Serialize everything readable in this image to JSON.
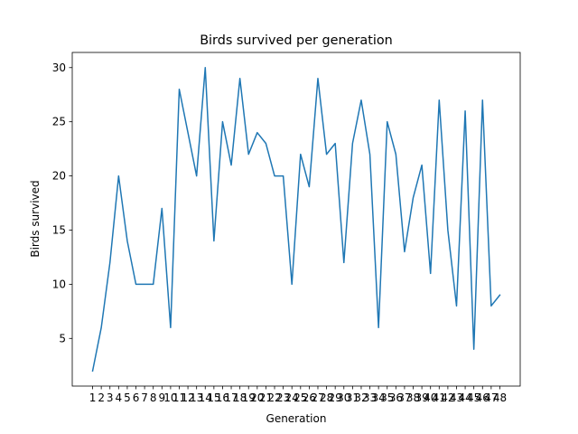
{
  "chart_data": {
    "type": "line",
    "title": "Birds survived per generation",
    "xlabel": "Generation",
    "ylabel": "Birds survived",
    "x": [
      1,
      2,
      3,
      4,
      5,
      6,
      7,
      8,
      9,
      10,
      11,
      12,
      13,
      14,
      15,
      16,
      17,
      18,
      19,
      20,
      21,
      22,
      23,
      24,
      25,
      26,
      27,
      28,
      29,
      30,
      31,
      32,
      33,
      34,
      35,
      36,
      37,
      38,
      39,
      40,
      41,
      42,
      43,
      44,
      45,
      46,
      47,
      48
    ],
    "series": [
      {
        "values": [
          2,
          6,
          12,
          20,
          14,
          10,
          10,
          10,
          17,
          6,
          28,
          24,
          20,
          30,
          14,
          25,
          21,
          29,
          22,
          24,
          23,
          20,
          20,
          10,
          22,
          19,
          29,
          22,
          23,
          12,
          23,
          27,
          22,
          6,
          25,
          22,
          13,
          18,
          21,
          11,
          27,
          15,
          8,
          26,
          4,
          27,
          8,
          9
        ],
        "color": "#1f77b4"
      }
    ],
    "xlim": [
      -1.35,
      50.35
    ],
    "ylim": [
      0.6,
      31.4
    ],
    "yticks": [
      5,
      10,
      15,
      20,
      25,
      30
    ],
    "grid": false,
    "legend": "none"
  }
}
